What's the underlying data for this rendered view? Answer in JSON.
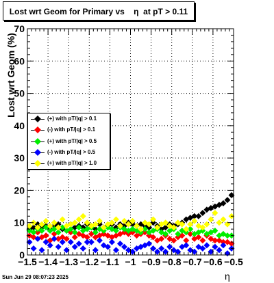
{
  "title": "Lost wrt Geom for Primary vs    η  at pT > 0.11",
  "xlabel": "η",
  "ylabel": "Lost wrt Geom (%)",
  "footer": "Sun Jun 29 08:07:23 2025",
  "chart_data": {
    "type": "scatter",
    "xlim": [
      -1.5,
      -0.5
    ],
    "ylim": [
      0,
      70
    ],
    "grid": true,
    "legend_position": "left",
    "x_ticks": [
      "−1.5",
      "−1.4",
      "−1.3",
      "−1.2",
      "−1.1",
      "−1",
      "−0.9",
      "−0.8",
      "−0.7",
      "−0.6",
      "−0.5"
    ],
    "x_tick_values": [
      -1.5,
      -1.4,
      -1.3,
      -1.2,
      -1.1,
      -1.0,
      -0.9,
      -0.8,
      -0.7,
      -0.6,
      -0.5
    ],
    "y_ticks": [
      "0",
      "10",
      "20",
      "30",
      "40",
      "50",
      "60",
      "70"
    ],
    "y_tick_values": [
      0,
      10,
      20,
      30,
      40,
      50,
      60,
      70
    ],
    "x": [
      -1.49,
      -1.47,
      -1.45,
      -1.43,
      -1.41,
      -1.39,
      -1.37,
      -1.35,
      -1.33,
      -1.31,
      -1.29,
      -1.27,
      -1.25,
      -1.23,
      -1.21,
      -1.19,
      -1.17,
      -1.15,
      -1.13,
      -1.11,
      -1.09,
      -1.07,
      -1.05,
      -1.03,
      -1.01,
      -0.99,
      -0.97,
      -0.95,
      -0.93,
      -0.91,
      -0.89,
      -0.87,
      -0.85,
      -0.83,
      -0.81,
      -0.79,
      -0.77,
      -0.75,
      -0.73,
      -0.71,
      -0.69,
      -0.67,
      -0.65,
      -0.63,
      -0.61,
      -0.59,
      -0.57,
      -0.55,
      -0.53,
      -0.51
    ],
    "series": [
      {
        "name": "(+) with pT/|q| > 0.1",
        "color": "#000000",
        "values": [
          8.0,
          8.5,
          9.5,
          8.5,
          9.0,
          8.0,
          9.0,
          9.5,
          8.0,
          7.5,
          9.5,
          8.5,
          9.0,
          8.5,
          9.5,
          9.0,
          8.0,
          9.5,
          8.5,
          9.0,
          9.5,
          8.5,
          9.5,
          9.0,
          10.0,
          9.5,
          9.0,
          9.5,
          9.0,
          8.5,
          10.0,
          9.0,
          8.0,
          8.5,
          9.5,
          9.0,
          9.5,
          10.0,
          11.0,
          11.5,
          12.0,
          12.0,
          13.0,
          14.0,
          14.5,
          15.0,
          15.5,
          16.0,
          17.0,
          18.5
        ]
      },
      {
        "name": "(-) with pT/|q| > 0.1",
        "color": "#ff0000",
        "values": [
          6.0,
          5.5,
          7.0,
          5.5,
          6.0,
          4.5,
          6.5,
          5.0,
          5.5,
          5.0,
          7.0,
          5.5,
          6.5,
          6.0,
          5.5,
          6.5,
          5.5,
          6.0,
          6.5,
          6.0,
          5.5,
          6.0,
          6.5,
          7.0,
          6.5,
          7.0,
          6.0,
          6.5,
          7.0,
          6.0,
          5.5,
          4.5,
          5.0,
          6.0,
          5.0,
          4.5,
          5.5,
          6.0,
          4.5,
          6.5,
          5.0,
          5.5,
          4.5,
          6.0,
          5.0,
          4.5,
          4.5,
          4.0,
          4.0,
          3.5
        ]
      },
      {
        "name": "(+) with pT/|q| > 0.5",
        "color": "#00ee00",
        "values": [
          7.5,
          7.0,
          8.0,
          7.5,
          8.5,
          7.5,
          8.0,
          7.0,
          8.5,
          7.5,
          8.0,
          7.0,
          8.5,
          7.5,
          8.0,
          8.5,
          7.0,
          8.0,
          7.5,
          8.5,
          8.0,
          7.5,
          8.5,
          8.0,
          7.5,
          8.0,
          7.5,
          7.0,
          8.0,
          7.0,
          7.5,
          8.0,
          7.0,
          6.5,
          7.5,
          8.0,
          6.5,
          7.5,
          7.0,
          8.0,
          6.5,
          7.0,
          7.5,
          6.5,
          7.0,
          7.5,
          6.0,
          6.5,
          6.0,
          6.0
        ]
      },
      {
        "name": "(-) with pT/|q| > 0.5",
        "color": "#0000ff",
        "values": [
          4.0,
          2.0,
          5.0,
          1.5,
          4.0,
          3.0,
          5.0,
          2.5,
          4.0,
          1.5,
          4.0,
          2.5,
          3.5,
          2.0,
          4.0,
          4.0,
          1.5,
          4.5,
          3.0,
          2.5,
          4.0,
          1.5,
          3.5,
          2.5,
          1.5,
          1.0,
          2.0,
          2.5,
          3.0,
          3.5,
          2.0,
          1.0,
          2.0,
          1.0,
          2.5,
          1.5,
          1.0,
          2.5,
          3.0,
          1.5,
          1.0,
          2.5,
          2.0,
          3.0,
          1.0,
          2.5,
          1.5,
          3.0,
          0.5,
          2.0
        ]
      },
      {
        "name": "(+) with pT/|q| > 1.0",
        "color": "#ffff00",
        "values": [
          9.0,
          10.0,
          8.5,
          9.5,
          10.5,
          9.0,
          10.0,
          8.5,
          11.0,
          9.0,
          9.5,
          10.0,
          11.0,
          12.0,
          10.0,
          9.0,
          9.5,
          10.5,
          8.5,
          9.5,
          10.0,
          11.0,
          9.0,
          10.5,
          9.5,
          10.5,
          9.0,
          8.0,
          10.0,
          9.5,
          11.0,
          8.5,
          9.5,
          10.0,
          9.0,
          8.5,
          10.0,
          9.5,
          8.0,
          9.5,
          10.5,
          9.0,
          8.5,
          9.5,
          11.0,
          13.0,
          10.0,
          11.0,
          9.5,
          12.0
        ]
      }
    ]
  }
}
